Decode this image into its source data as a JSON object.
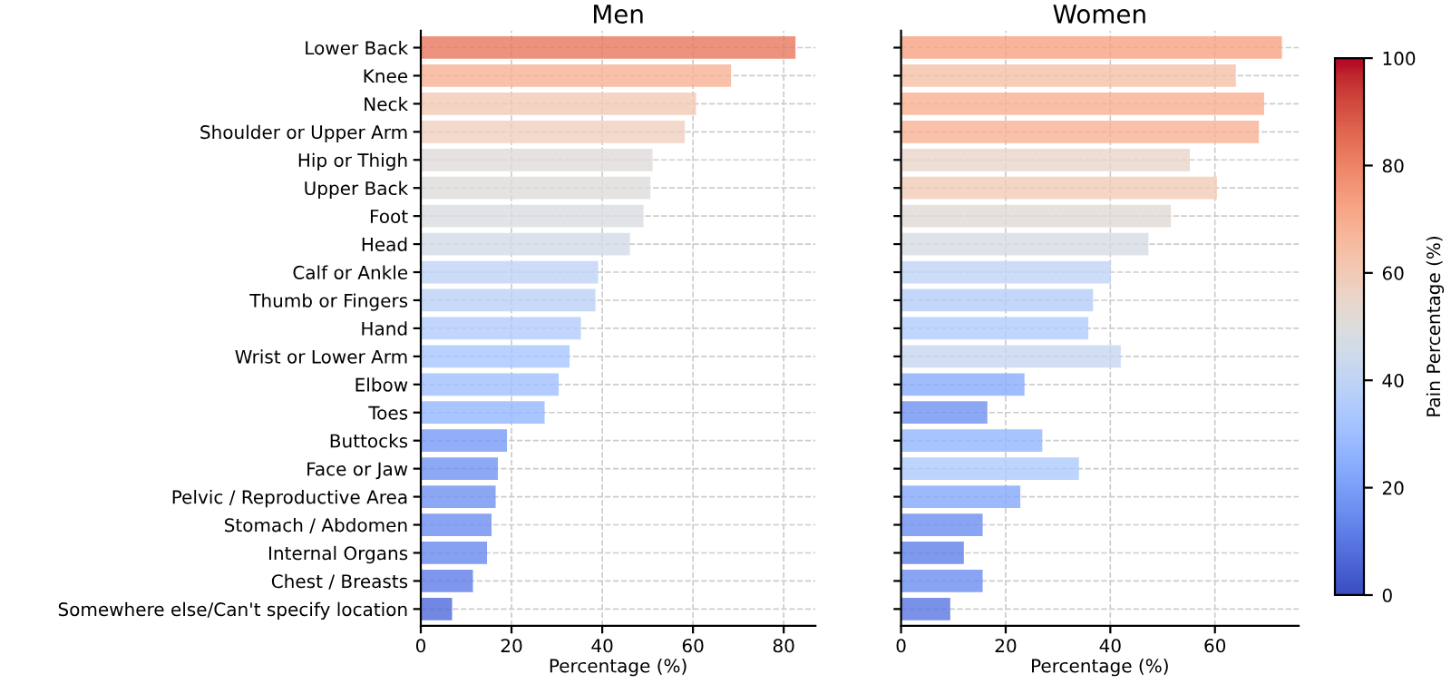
{
  "chart_data": [
    {
      "type": "bar",
      "orientation": "horizontal",
      "title": "Men",
      "xlabel": "Percentage (%)",
      "categories": [
        "Lower Back",
        "Knee",
        "Neck",
        "Shoulder or Upper Arm",
        "Hip or Thigh",
        "Upper Back",
        "Foot",
        "Head",
        "Calf or Ankle",
        "Thumb or Fingers",
        "Hand",
        "Wrist or Lower Arm",
        "Elbow",
        "Toes",
        "Buttocks",
        "Face or Jaw",
        "Pelvic / Reproductive Area",
        "Stomach / Abdomen",
        "Internal Organs",
        "Chest / Breasts",
        "Somewhere else/Can't specify location"
      ],
      "values": [
        82.6,
        68.4,
        60.7,
        58.2,
        51.1,
        50.6,
        49.1,
        46.1,
        39.1,
        38.5,
        35.3,
        32.8,
        30.4,
        27.3,
        19.0,
        17.0,
        16.5,
        15.6,
        14.6,
        11.5,
        6.9
      ],
      "xlim": [
        0,
        87
      ],
      "xticks": [
        0,
        20,
        40,
        60,
        80
      ],
      "grid": true,
      "line_style": "dashed"
    },
    {
      "type": "bar",
      "orientation": "horizontal",
      "title": "Women",
      "xlabel": "Percentage (%)",
      "tick_labels": "x",
      "categories": [
        "Lower Back",
        "Knee",
        "Neck",
        "Shoulder or Upper Arm",
        "Hip or Thigh",
        "Upper Back",
        "Foot",
        "Head",
        "Calf or Ankle",
        "Thumb or Fingers",
        "Hand",
        "Wrist or Lower Arm",
        "Elbow",
        "Toes",
        "Buttocks",
        "Face or Jaw",
        "Pelvic / Reproductive Area",
        "Stomach / Abdomen",
        "Internal Organs",
        "Chest / Breasts",
        "Somewhere else/Can't specify location"
      ],
      "values": [
        72.8,
        64.0,
        69.4,
        68.4,
        55.2,
        60.4,
        51.6,
        47.3,
        40.1,
        36.7,
        35.8,
        42.0,
        23.6,
        16.5,
        27.0,
        34.0,
        22.8,
        15.6,
        12.0,
        15.6,
        9.4
      ],
      "clim": [
        0,
        100
      ],
      "cticks": [
        0,
        20,
        40,
        60,
        80,
        100
      ],
      "clabel": "Pain Percentage (%)",
      "xlim": [
        0,
        76
      ],
      "xticks": [
        0,
        20,
        40,
        60
      ],
      "grid": true,
      "line_style": "dashed"
    }
  ]
}
